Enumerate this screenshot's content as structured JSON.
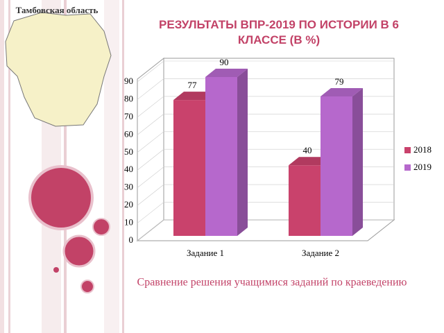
{
  "region_label": "Тамбовская область",
  "caption": "Сравнение решения учащимися заданий по краеведению",
  "chart_data": {
    "type": "bar",
    "title": "РЕЗУЛЬТАТЫ ВПР-2019 ПО ИСТОРИИ В 6 КЛАССЕ (В %)",
    "categories": [
      "Задание 1",
      "Задание 2"
    ],
    "series": [
      {
        "name": "2018",
        "color": "#c9426c",
        "values": [
          77,
          40
        ]
      },
      {
        "name": "2019",
        "color": "#b668cc",
        "values": [
          90,
          79
        ]
      }
    ],
    "ylim": [
      0,
      90
    ],
    "yticks": [
      0,
      10,
      20,
      30,
      40,
      50,
      60,
      70,
      80,
      90
    ],
    "legend": "right"
  }
}
